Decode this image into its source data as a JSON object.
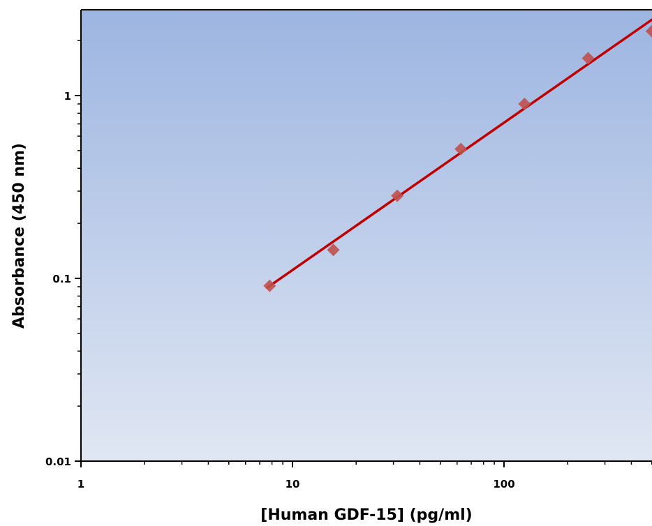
{
  "chart_data": {
    "type": "scatter",
    "title": "",
    "xlabel": "[Human GDF-15] (pg/ml)",
    "ylabel": "Absorbance (450 nm)",
    "x_scale": "log",
    "y_scale": "log",
    "xlim": [
      1,
      500
    ],
    "ylim": [
      0.01,
      2.8
    ],
    "x_ticks": [
      {
        "value": 1,
        "label": "1"
      },
      {
        "value": 10,
        "label": "10"
      },
      {
        "value": 100,
        "label": "100"
      }
    ],
    "y_ticks": [
      {
        "value": 0.01,
        "label": "0.01"
      },
      {
        "value": 0.1,
        "label": "0.1"
      },
      {
        "value": 1,
        "label": "1"
      }
    ],
    "grid": false,
    "legend": "none",
    "series": [
      {
        "points": [
          {
            "x": 7.8,
            "y": 0.091
          },
          {
            "x": 15.6,
            "y": 0.143
          },
          {
            "x": 31.3,
            "y": 0.283
          },
          {
            "x": 62.5,
            "y": 0.51
          },
          {
            "x": 125,
            "y": 0.9
          },
          {
            "x": 250,
            "y": 1.6
          },
          {
            "x": 500,
            "y": 2.25
          }
        ],
        "fit_line": [
          {
            "x": 7.6,
            "y": 0.089
          },
          {
            "x": 500,
            "y": 2.6
          }
        ]
      }
    ],
    "colors": {
      "background_top": "#9db5e1",
      "background_bottom": "#e0e7f3",
      "line": "#c00000",
      "marker": "#c0504d",
      "axis": "#000000"
    }
  }
}
